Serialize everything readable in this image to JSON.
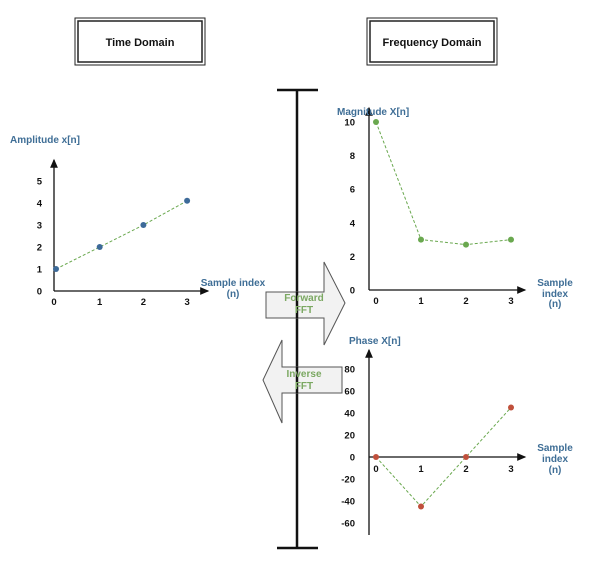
{
  "headers": {
    "time": "Time Domain",
    "frequency": "Frequency Domain"
  },
  "arrows": {
    "forward": [
      "Forward",
      "FFT"
    ],
    "inverse": [
      "Inverse",
      "FFT"
    ]
  },
  "colors": {
    "time": "#3d6a99",
    "magnitude": "#6aa84f",
    "phase": "#c0503c",
    "label": "#3f6e96",
    "line": "#6aa84f"
  },
  "chart_data": [
    {
      "type": "line",
      "name": "time",
      "title": "Time Domain",
      "ylabel": "Amplitude x[n]",
      "xlabel": [
        "Sample index",
        "(n)"
      ],
      "x": [
        0,
        1,
        2,
        3
      ],
      "values": [
        1,
        2,
        3,
        4.1
      ],
      "xticks": [
        "0",
        "1",
        "2",
        "3"
      ],
      "yticks": [
        "0",
        "1",
        "2",
        "3",
        "4",
        "5"
      ],
      "ylim": [
        0,
        5
      ]
    },
    {
      "type": "line",
      "name": "magnitude",
      "title": "Frequency Domain",
      "ylabel": "Magnitude X[n]",
      "xlabel": [
        "Sample",
        "index",
        "(n)"
      ],
      "x": [
        0,
        1,
        2,
        3
      ],
      "values": [
        10,
        3,
        2.7,
        3
      ],
      "xticks": [
        "0",
        "1",
        "2",
        "3"
      ],
      "yticks": [
        "0",
        "2",
        "4",
        "6",
        "8",
        "10"
      ],
      "ylim": [
        0,
        10
      ]
    },
    {
      "type": "line",
      "name": "phase",
      "ylabel": "Phase X[n]",
      "xlabel": [
        "Sample",
        "index",
        "(n)"
      ],
      "x": [
        0,
        1,
        2,
        3
      ],
      "values": [
        0,
        -45,
        0,
        45
      ],
      "xticks": [
        "0",
        "1",
        "2",
        "3"
      ],
      "yticks": [
        "80",
        "60",
        "40",
        "20",
        "0",
        "-20",
        "-40",
        "-60"
      ],
      "ylim": [
        -60,
        80
      ]
    }
  ]
}
